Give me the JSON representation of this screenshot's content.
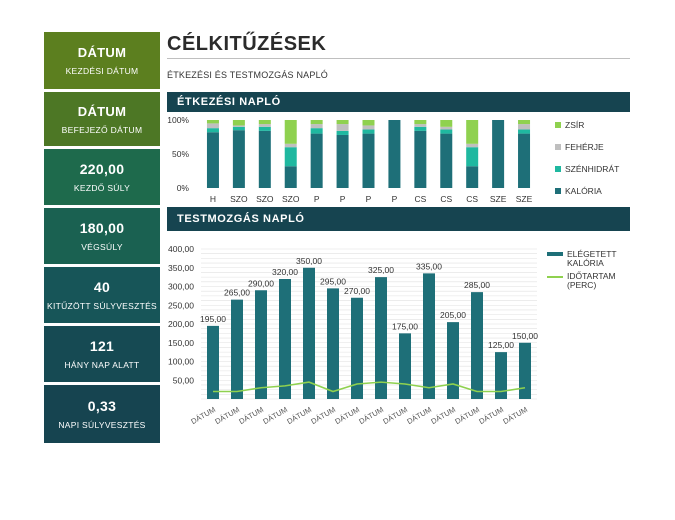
{
  "header": {
    "title": "CÉLKITŰZÉSEK",
    "subtitle": "ÉTKEZÉSI ÉS TESTMOZGÁS NAPLÓ"
  },
  "stats": [
    {
      "value": "DÁTUM",
      "label": "KEZDÉSI DÁTUM"
    },
    {
      "value": "DÁTUM",
      "label": "BEFEJEZŐ DÁTUM"
    },
    {
      "value": "220,00",
      "label": "KEZDŐ SÚLY"
    },
    {
      "value": "180,00",
      "label": "VÉGSÚLY"
    },
    {
      "value": "40",
      "label": "KITŰZÖTT SÚLYVESZTÉS"
    },
    {
      "value": "121",
      "label": "HÁNY NAP ALATT"
    },
    {
      "value": "0,33",
      "label": "NAPI SÚLYVESZTÉS"
    }
  ],
  "sections": {
    "food_log": "ÉTKEZÉSI NAPLÓ",
    "exercise_log": "TESTMOZGÁS NAPLÓ"
  },
  "colors": {
    "kaloria": "#1e6f78",
    "szenhidrat": "#1fb8a0",
    "feherje": "#bfbfbf",
    "zsir": "#8fd14f",
    "bar": "#1e6f78",
    "line": "#8fd14f"
  },
  "chart_data": [
    {
      "type": "bar",
      "stacked": "100%",
      "categories": [
        "H",
        "SZO",
        "SZO",
        "SZO",
        "P",
        "P",
        "P",
        "P",
        "CS",
        "CS",
        "CS",
        "SZE",
        "SZE"
      ],
      "y_ticks": [
        "0%",
        "50%",
        "100%"
      ],
      "series": [
        {
          "name": "KALÓRIA",
          "values": [
            0.82,
            0.85,
            0.84,
            0.32,
            0.8,
            0.78,
            0.8,
            1.0,
            0.84,
            0.8,
            0.32,
            1.0,
            0.8
          ]
        },
        {
          "name": "SZÉNHIDRÁT",
          "values": [
            0.06,
            0.05,
            0.06,
            0.28,
            0.08,
            0.06,
            0.06,
            0.0,
            0.06,
            0.06,
            0.28,
            0.0,
            0.06
          ]
        },
        {
          "name": "FEHÉRJE",
          "values": [
            0.07,
            0.02,
            0.04,
            0.05,
            0.06,
            0.1,
            0.06,
            0.0,
            0.04,
            0.04,
            0.05,
            0.0,
            0.08
          ]
        },
        {
          "name": "ZSÍR",
          "values": [
            0.05,
            0.08,
            0.06,
            0.35,
            0.06,
            0.06,
            0.08,
            0.0,
            0.06,
            0.1,
            0.35,
            0.0,
            0.06
          ]
        }
      ],
      "legend_order": [
        "ZSÍR",
        "FEHÉRJE",
        "SZÉNHIDRÁT",
        "KALÓRIA"
      ],
      "legend": "right"
    },
    {
      "type": "bar",
      "categories": [
        "DÁTUM",
        "DÁTUM",
        "DÁTUM",
        "DÁTUM",
        "DÁTUM",
        "DÁTUM",
        "DÁTUM",
        "DÁTUM",
        "DÁTUM",
        "DÁTUM",
        "DÁTUM",
        "DÁTUM",
        "DÁTUM",
        "DÁTUM"
      ],
      "y_ticks": [
        "50,00",
        "100,00",
        "150,00",
        "200,00",
        "250,00",
        "300,00",
        "350,00",
        "400,00"
      ],
      "ylim": [
        0,
        400
      ],
      "series": [
        {
          "name": "ELÉGETETT KALÓRIA",
          "type": "bar",
          "values": [
            195,
            265,
            290,
            320,
            350,
            295,
            270,
            325,
            175,
            335,
            205,
            285,
            125,
            150
          ],
          "labels": [
            "195,00",
            "265,00",
            "290,00",
            "320,00",
            "350,00",
            "295,00",
            "270,00",
            "325,00",
            "175,00",
            "335,00",
            "205,00",
            "285,00",
            "125,00",
            "150,00"
          ]
        },
        {
          "name": "IDŐTARTAM (PERC)",
          "type": "line",
          "values": [
            20,
            20,
            30,
            35,
            45,
            20,
            40,
            45,
            40,
            30,
            40,
            20,
            20,
            30
          ]
        }
      ],
      "legend_labels": [
        [
          "ELÉGETETT",
          "KALÓRIA"
        ],
        [
          "IDŐTARTAM",
          "(PERC)"
        ]
      ],
      "legend": "right"
    }
  ]
}
